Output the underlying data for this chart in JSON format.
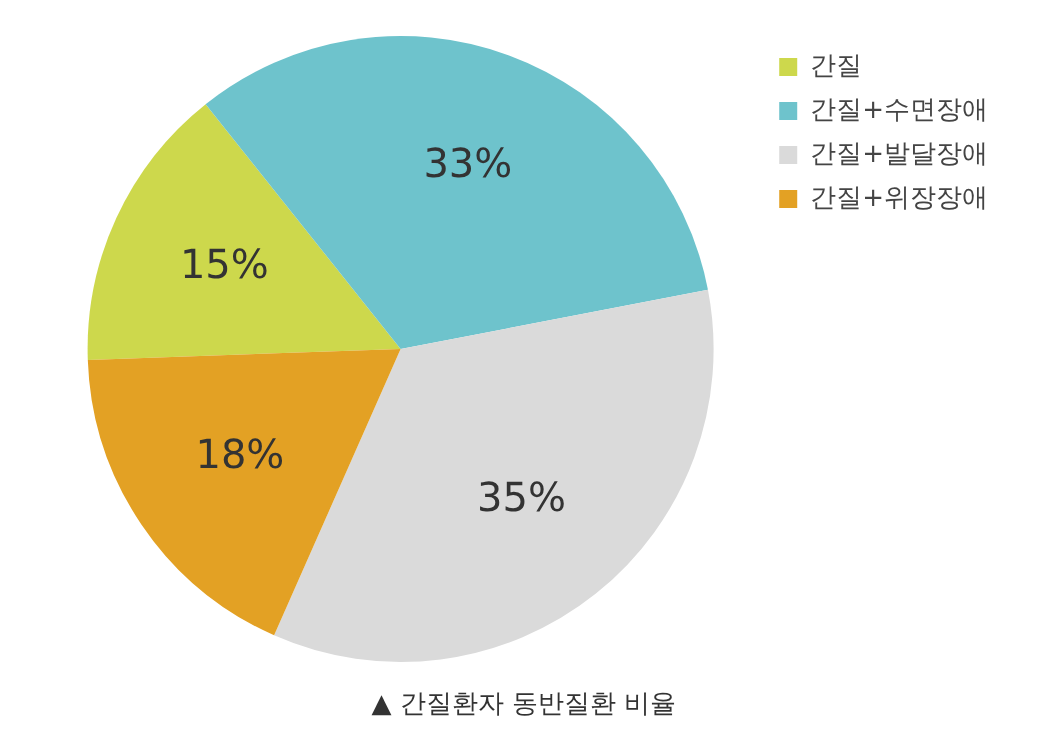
{
  "chart_data": {
    "type": "pie",
    "categories": [
      "간질",
      "간질+수면장애",
      "간질+발달장애",
      "간질+위장장애"
    ],
    "values": [
      15,
      33,
      35,
      18
    ],
    "colors": [
      "#cdd84c",
      "#6ec3cc",
      "#dadada",
      "#e3a124"
    ],
    "value_labels": [
      "15%",
      "33%",
      "35%",
      "18%"
    ],
    "legend": "top right",
    "annotations": [
      "▲ 간질환자 동반질환 비율"
    ]
  }
}
